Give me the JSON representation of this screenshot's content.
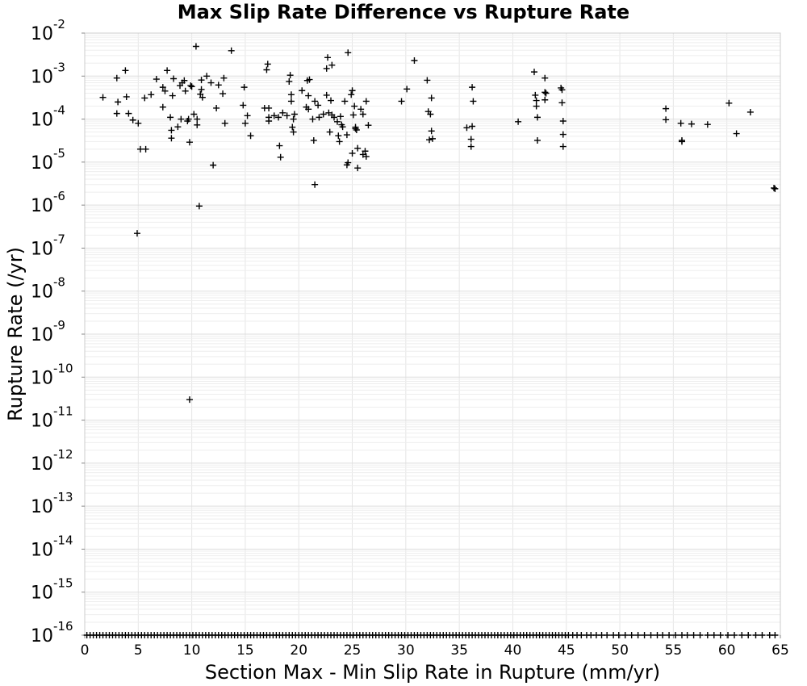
{
  "chart_data": {
    "type": "scatter",
    "title": "Max Slip Rate Difference vs Rupture Rate",
    "xlabel": "Section Max - Min Slip Rate in Rupture (mm/yr)",
    "ylabel": "Rupture Rate (/yr)",
    "xlim": [
      0,
      65
    ],
    "ylim": [
      1e-16,
      0.01
    ],
    "y_scale": "log",
    "grid": true,
    "marker": "+",
    "marker_color": "#000000",
    "grid_color": "#e6e6e6",
    "xticks": [
      "0",
      "5",
      "10",
      "15",
      "20",
      "25",
      "30",
      "35",
      "40",
      "45",
      "50",
      "55",
      "60",
      "65"
    ],
    "yticks": [
      {
        "base": "10",
        "exp": "-2"
      },
      {
        "base": "10",
        "exp": "-3"
      },
      {
        "base": "10",
        "exp": "-4"
      },
      {
        "base": "10",
        "exp": "-5"
      },
      {
        "base": "10",
        "exp": "-6"
      },
      {
        "base": "10",
        "exp": "-7"
      },
      {
        "base": "10",
        "exp": "-8"
      },
      {
        "base": "10",
        "exp": "-9"
      },
      {
        "base": "10",
        "exp": "-10"
      },
      {
        "base": "10",
        "exp": "-11"
      },
      {
        "base": "10",
        "exp": "-12"
      },
      {
        "base": "10",
        "exp": "-13"
      },
      {
        "base": "10",
        "exp": "-14"
      },
      {
        "base": "10",
        "exp": "-15"
      },
      {
        "base": "10",
        "exp": "-16"
      }
    ],
    "points": [
      [
        1.7,
        0.00032
      ],
      [
        3.0,
        0.0009
      ],
      [
        3.1,
        0.00025
      ],
      [
        3.0,
        0.000135
      ],
      [
        3.8,
        0.00135
      ],
      [
        3.9,
        0.00033
      ],
      [
        4.1,
        0.000135
      ],
      [
        4.5,
        9.5e-05
      ],
      [
        5.0,
        8e-05
      ],
      [
        5.2,
        2e-05
      ],
      [
        5.7,
        2e-05
      ],
      [
        5.6,
        0.00031
      ],
      [
        6.2,
        0.00037
      ],
      [
        6.7,
        0.00085
      ],
      [
        7.3,
        0.00055
      ],
      [
        7.5,
        0.00045
      ],
      [
        7.3,
        0.00019
      ],
      [
        7.7,
        0.00135
      ],
      [
        8.0,
        0.00011
      ],
      [
        8.1,
        3.6e-05
      ],
      [
        8.1,
        5.5e-05
      ],
      [
        8.2,
        0.00035
      ],
      [
        8.3,
        0.00087
      ],
      [
        8.7,
        6.6e-05
      ],
      [
        8.9,
        0.0006
      ],
      [
        9.0,
        0.0001
      ],
      [
        9.1,
        0.0007
      ],
      [
        9.3,
        0.00079
      ],
      [
        9.4,
        0.00045
      ],
      [
        9.6,
        9e-05
      ],
      [
        9.7,
        0.0001
      ],
      [
        9.8,
        2.9e-05
      ],
      [
        9.9,
        0.0006
      ],
      [
        10.0,
        0.00057
      ],
      [
        10.2,
        0.00013
      ],
      [
        10.4,
        0.0049
      ],
      [
        10.5,
        0.0001
      ],
      [
        10.5,
        7.3e-05
      ],
      [
        10.8,
        0.00038
      ],
      [
        10.9,
        0.00081
      ],
      [
        10.9,
        0.00049
      ],
      [
        11.0,
        0.00032
      ],
      [
        11.4,
        0.001
      ],
      [
        11.8,
        0.0007
      ],
      [
        12.0,
        8.5e-06
      ],
      [
        12.3,
        0.00018
      ],
      [
        12.5,
        0.00062
      ],
      [
        12.9,
        0.00039
      ],
      [
        13.0,
        0.0009
      ],
      [
        13.1,
        8e-05
      ],
      [
        13.7,
        0.0039
      ],
      [
        14.9,
        0.00055
      ],
      [
        15.0,
        8e-05
      ],
      [
        14.8,
        0.00021
      ],
      [
        15.2,
        0.00012
      ],
      [
        15.5,
        4.1e-05
      ],
      [
        16.8,
        0.00018
      ],
      [
        17.0,
        0.0014
      ],
      [
        17.1,
        0.0019
      ],
      [
        17.2,
        0.00018
      ],
      [
        17.2,
        0.00011
      ],
      [
        17.2,
        9e-05
      ],
      [
        17.7,
        0.00012
      ],
      [
        18.1,
        0.00011
      ],
      [
        18.2,
        2.4e-05
      ],
      [
        18.3,
        1.3e-05
      ],
      [
        18.5,
        0.00014
      ],
      [
        18.9,
        0.00012
      ],
      [
        19.1,
        0.00075
      ],
      [
        19.2,
        0.00105
      ],
      [
        19.3,
        0.00037
      ],
      [
        19.3,
        0.00026
      ],
      [
        19.4,
        6.5e-05
      ],
      [
        19.5,
        5e-05
      ],
      [
        19.5,
        0.0001
      ],
      [
        19.6,
        0.00013
      ],
      [
        20.3,
        0.00046
      ],
      [
        20.7,
        0.00019
      ],
      [
        20.8,
        0.00079
      ],
      [
        20.9,
        0.00035
      ],
      [
        20.9,
        0.00017
      ],
      [
        21.0,
        0.00083
      ],
      [
        21.3,
        0.0001
      ],
      [
        21.4,
        3.2e-05
      ],
      [
        21.5,
        0.00026
      ],
      [
        21.5,
        3e-06
      ],
      [
        21.8,
        0.00021
      ],
      [
        21.9,
        0.00011
      ],
      [
        22.3,
        0.00013
      ],
      [
        22.6,
        0.0015
      ],
      [
        22.6,
        0.00036
      ],
      [
        22.7,
        0.0027
      ],
      [
        22.8,
        0.00014
      ],
      [
        22.9,
        5e-05
      ],
      [
        23.0,
        0.00027
      ],
      [
        23.1,
        0.0018
      ],
      [
        23.1,
        0.000125
      ],
      [
        23.3,
        0.00011
      ],
      [
        23.6,
        8.7e-05
      ],
      [
        23.7,
        4.1e-05
      ],
      [
        23.8,
        3e-05
      ],
      [
        23.9,
        0.000115
      ],
      [
        24.0,
        7.4e-05
      ],
      [
        24.1,
        6.6e-05
      ],
      [
        24.3,
        0.00026
      ],
      [
        24.5,
        4.3e-05
      ],
      [
        24.5,
        8.6e-06
      ],
      [
        24.6,
        9.7e-06
      ],
      [
        24.6,
        0.0035
      ],
      [
        24.9,
        0.00037
      ],
      [
        25.0,
        0.00046
      ],
      [
        25.0,
        1.6e-05
      ],
      [
        25.1,
        0.000125
      ],
      [
        25.2,
        0.0002
      ],
      [
        25.3,
        6.5e-05
      ],
      [
        25.3,
        6e-05
      ],
      [
        25.4,
        5.6e-05
      ],
      [
        25.5,
        2.1e-05
      ],
      [
        25.5,
        7.3e-06
      ],
      [
        25.8,
        0.00017
      ],
      [
        26.0,
        0.00013
      ],
      [
        26.0,
        1.5e-05
      ],
      [
        26.2,
        1.8e-05
      ],
      [
        26.3,
        0.00026
      ],
      [
        26.3,
        1.35e-05
      ],
      [
        26.5,
        7.2e-05
      ],
      [
        29.6,
        0.00026
      ],
      [
        30.1,
        0.0005
      ],
      [
        30.8,
        0.0023
      ],
      [
        32.0,
        0.0008
      ],
      [
        32.1,
        0.00015
      ],
      [
        32.2,
        3.3e-05
      ],
      [
        32.3,
        0.00013
      ],
      [
        32.4,
        0.00031
      ],
      [
        32.4,
        5.3e-05
      ],
      [
        32.5,
        3.5e-05
      ],
      [
        35.7,
        6.3e-05
      ],
      [
        36.1,
        2.3e-05
      ],
      [
        36.1,
        3.4e-05
      ],
      [
        36.2,
        6.8e-05
      ],
      [
        36.2,
        0.00055
      ],
      [
        36.3,
        0.00026
      ],
      [
        40.5,
        8.7e-05
      ],
      [
        42.0,
        0.00125
      ],
      [
        42.1,
        0.00036
      ],
      [
        42.2,
        0.00027
      ],
      [
        42.2,
        0.0002
      ],
      [
        42.3,
        0.00011
      ],
      [
        42.3,
        3.2e-05
      ],
      [
        43.0,
        0.0009
      ],
      [
        43.0,
        0.00042
      ],
      [
        43.0,
        0.00028
      ],
      [
        43.1,
        0.0004
      ],
      [
        44.5,
        0.00053
      ],
      [
        44.6,
        0.00048
      ],
      [
        44.6,
        0.00024
      ],
      [
        44.7,
        9e-05
      ],
      [
        44.7,
        4.4e-05
      ],
      [
        44.7,
        2.3e-05
      ],
      [
        54.3,
        0.000175
      ],
      [
        54.3,
        9.7e-05
      ],
      [
        55.7,
        8e-05
      ],
      [
        55.8,
        3.2e-05
      ],
      [
        55.8,
        3e-05
      ],
      [
        56.7,
        7.7e-05
      ],
      [
        58.2,
        7.5e-05
      ],
      [
        60.2,
        0.000235
      ],
      [
        60.9,
        4.6e-05
      ],
      [
        62.2,
        0.000145
      ],
      [
        64.4,
        2.5e-06
      ],
      [
        64.5,
        2.4e-06
      ],
      [
        9.8,
        3e-11
      ],
      [
        10.7,
        9.5e-07
      ],
      [
        4.9,
        2.2e-07
      ]
    ],
    "floor_value": 1e-16,
    "floor_points_x": [
      0.2,
      0.5,
      0.8,
      1.1,
      1.4,
      1.7,
      2.0,
      2.3,
      2.6,
      2.9,
      3.2,
      3.5,
      3.8,
      4.1,
      4.4,
      4.7,
      5.0,
      5.3,
      5.6,
      5.9,
      6.2,
      6.5,
      6.8,
      7.1,
      7.4,
      7.7,
      8.0,
      8.3,
      8.6,
      8.9,
      9.2,
      9.5,
      9.8,
      10.1,
      10.4,
      10.7,
      11.0,
      11.3,
      11.6,
      11.9,
      12.2,
      12.5,
      12.8,
      13.1,
      13.4,
      13.7,
      14.0,
      14.3,
      14.6,
      14.9,
      15.2,
      15.5,
      15.8,
      16.1,
      16.4,
      16.7,
      17.0,
      17.3,
      17.6,
      17.9,
      18.2,
      18.5,
      18.8,
      19.1,
      19.4,
      19.7,
      20.0,
      20.3,
      20.6,
      20.9,
      21.2,
      21.5,
      21.8,
      22.1,
      22.4,
      22.7,
      23.0,
      23.3,
      23.6,
      23.9,
      24.2,
      24.5,
      24.8,
      25.1,
      25.4,
      25.7,
      26.0,
      26.3,
      26.6,
      26.9,
      27.2,
      27.5,
      27.8,
      28.1,
      28.4,
      28.7,
      29.0,
      29.3,
      29.6,
      29.9,
      30.2,
      30.5,
      30.8,
      31.1,
      31.4,
      31.7,
      32.0,
      32.3,
      32.6,
      32.9,
      33.2,
      33.5,
      33.8,
      34.1,
      34.4,
      34.7,
      35.0,
      35.3,
      35.6,
      35.9,
      36.2,
      36.5,
      36.8,
      37.1,
      37.4,
      37.7,
      38.0,
      38.3,
      38.6,
      38.9,
      39.2,
      39.5,
      39.8,
      40.1,
      40.4,
      40.7,
      41.0,
      41.3,
      41.6,
      41.9,
      42.2,
      42.5,
      42.8,
      43.1,
      43.4,
      43.7,
      44.0,
      44.3,
      44.6,
      44.9,
      45.2,
      45.6,
      46.0,
      46.4,
      46.9,
      47.3,
      47.8,
      48.3,
      48.8,
      49.4,
      49.9,
      50.5,
      51.1,
      51.7,
      52.3,
      52.9,
      53.5,
      54.0,
      54.6,
      55.2,
      55.8,
      56.3,
      56.9,
      57.5,
      58.2,
      58.8,
      59.4,
      60.1,
      60.7,
      61.4,
      62.0,
      62.7,
      63.3,
      64.0,
      64.5
    ]
  }
}
